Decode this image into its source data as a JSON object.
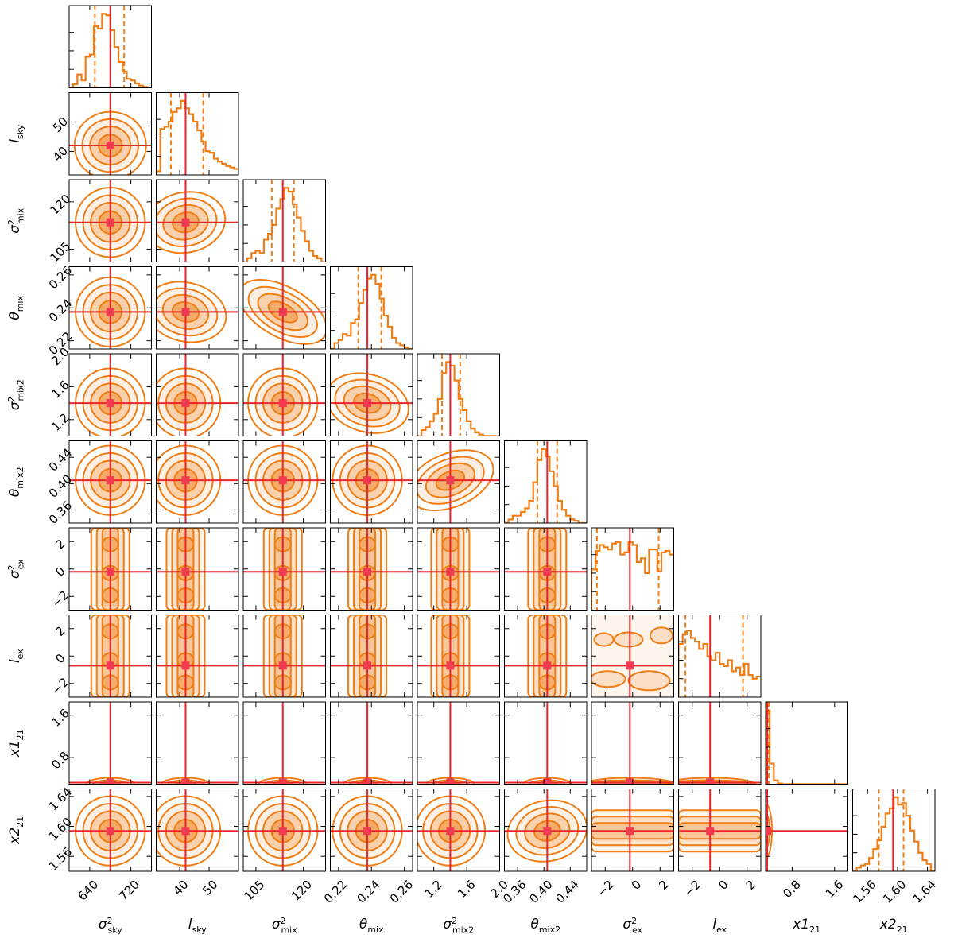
{
  "colors": {
    "contour": "#f07d15",
    "fill": "#f07d15",
    "truth": "#e8262a",
    "truth_marker": "#f03a50",
    "axes": "#000000"
  },
  "chart_data": {
    "type": "corner",
    "parameters": [
      {
        "key": "s2sky",
        "base": "σ",
        "sup": "2",
        "sub": "sky",
        "range": [
          600,
          760
        ],
        "ticks": [
          640,
          720
        ],
        "tick_labels": [
          "640",
          "720"
        ],
        "truth": 680,
        "quantiles": [
          650,
          707
        ]
      },
      {
        "key": "lsky",
        "base": "l",
        "sup": "",
        "sub": "sky",
        "range": [
          32,
          60
        ],
        "ticks": [
          40,
          50
        ],
        "tick_labels": [
          "40",
          "50"
        ],
        "truth": 42,
        "quantiles": [
          37,
          48
        ]
      },
      {
        "key": "s2mix",
        "base": "σ",
        "sup": "2",
        "sub": "mix",
        "range": [
          101,
          127
        ],
        "ticks": [
          105,
          120
        ],
        "tick_labels": [
          "105",
          "120"
        ],
        "truth": 113.5,
        "quantiles": [
          110,
          117
        ]
      },
      {
        "key": "tmix",
        "base": "θ",
        "sup": "",
        "sub": "mix",
        "range": [
          0.215,
          0.265
        ],
        "ticks": [
          0.22,
          0.24,
          0.26
        ],
        "tick_labels": [
          "0.22",
          "0.24",
          "0.26"
        ],
        "truth": 0.2375,
        "quantiles": [
          0.232,
          0.246
        ]
      },
      {
        "key": "s2mix2",
        "base": "σ",
        "sup": "2",
        "sub": "mix2",
        "range": [
          1.0,
          2.0
        ],
        "ticks": [
          1.2,
          1.6,
          2.0
        ],
        "tick_labels": [
          "1.2",
          "1.6",
          "2.0"
        ],
        "truth": 1.4,
        "quantiles": [
          1.3,
          1.52
        ]
      },
      {
        "key": "tmix2",
        "base": "θ",
        "sup": "",
        "sub": "mix2",
        "range": [
          0.34,
          0.465
        ],
        "ticks": [
          0.36,
          0.4,
          0.44
        ],
        "tick_labels": [
          "0.36",
          "0.40",
          "0.44"
        ],
        "truth": 0.405,
        "quantiles": [
          0.39,
          0.42
        ]
      },
      {
        "key": "s2ex",
        "base": "σ",
        "sup": "2",
        "sub": "ex",
        "range": [
          -3,
          3
        ],
        "ticks": [
          -2,
          0,
          2
        ],
        "tick_labels": [
          "−2",
          "0",
          "2"
        ],
        "truth": -0.2,
        "quantiles": [
          -2.6,
          1.9
        ]
      },
      {
        "key": "lex",
        "base": "l",
        "sup": "",
        "sub": "ex",
        "range": [
          -3,
          3
        ],
        "ticks": [
          -2,
          0,
          2
        ],
        "tick_labels": [
          "−2",
          "0",
          "2"
        ],
        "truth": -0.7,
        "quantiles": [
          -2.5,
          1.7
        ]
      },
      {
        "key": "x121",
        "base": "x1",
        "sup": "",
        "sub": "21",
        "range": [
          0.3,
          1.85
        ],
        "ticks": [
          0.8,
          1.6
        ],
        "tick_labels": [
          "0.8",
          "1.6"
        ],
        "truth": 0.33,
        "quantiles": [
          0.31,
          0.36
        ]
      },
      {
        "key": "x221",
        "base": "x2",
        "sup": "",
        "sub": "21",
        "range": [
          1.54,
          1.65
        ],
        "ticks": [
          1.56,
          1.6,
          1.64
        ],
        "tick_labels": [
          "1.56",
          "1.60",
          "1.64"
        ],
        "truth": 1.594,
        "quantiles": [
          1.575,
          1.608
        ]
      }
    ],
    "histograms": [
      [
        0.0,
        0.05,
        0.18,
        0.1,
        0.42,
        0.45,
        0.83,
        0.8,
        1.0,
        0.98,
        0.78,
        0.55,
        0.35,
        0.22,
        0.12,
        0.1,
        0.06,
        0.03,
        0.01,
        0.0
      ],
      [
        0.05,
        0.62,
        0.65,
        0.72,
        0.85,
        0.9,
        1.0,
        0.9,
        0.82,
        0.72,
        0.6,
        0.45,
        0.32,
        0.3,
        0.22,
        0.18,
        0.15,
        0.12,
        0.1,
        0.08
      ],
      [
        0.0,
        0.05,
        0.12,
        0.15,
        0.12,
        0.3,
        0.38,
        0.5,
        0.72,
        0.85,
        1.0,
        0.95,
        0.78,
        0.6,
        0.42,
        0.28,
        0.15,
        0.08,
        0.05,
        0.0
      ],
      [
        0.0,
        0.08,
        0.12,
        0.2,
        0.18,
        0.35,
        0.4,
        0.62,
        0.8,
        0.95,
        1.0,
        0.88,
        0.68,
        0.45,
        0.3,
        0.15,
        0.08,
        0.05,
        0.02,
        0.0
      ],
      [
        0.0,
        0.08,
        0.12,
        0.2,
        0.3,
        0.5,
        0.85,
        1.0,
        0.95,
        0.75,
        0.5,
        0.35,
        0.2,
        0.1,
        0.05,
        0.02,
        0.0,
        0.0,
        0.0,
        0.0
      ],
      [
        0.0,
        0.05,
        0.1,
        0.1,
        0.15,
        0.2,
        0.3,
        0.55,
        0.85,
        1.0,
        0.9,
        0.7,
        0.5,
        0.3,
        0.18,
        0.1,
        0.05,
        0.03,
        0.0,
        0.0
      ],
      [
        0.55,
        0.8,
        0.88,
        0.85,
        0.82,
        0.9,
        0.92,
        0.75,
        0.78,
        0.92,
        0.88,
        0.65,
        0.7,
        0.5,
        0.82,
        0.82,
        0.52,
        0.78,
        0.8,
        0.75
      ],
      [
        0.72,
        0.85,
        0.9,
        0.8,
        0.75,
        0.65,
        0.72,
        0.55,
        0.5,
        0.6,
        0.45,
        0.42,
        0.5,
        0.35,
        0.4,
        0.3,
        0.45,
        0.3,
        0.25,
        0.28
      ],
      [
        1.0,
        0.28,
        0.05,
        0.01,
        0.0,
        0.0,
        0.0,
        0.0,
        0.0,
        0.0,
        0.0,
        0.0,
        0.0,
        0.0,
        0.0,
        0.0,
        0.0,
        0.0,
        0.0,
        0.0
      ],
      [
        0.0,
        0.05,
        0.08,
        0.1,
        0.18,
        0.3,
        0.42,
        0.6,
        0.78,
        0.85,
        1.0,
        0.9,
        0.92,
        0.75,
        0.55,
        0.4,
        0.25,
        0.15,
        0.1,
        0.0
      ]
    ],
    "correlations": {
      "1-0": 0.05,
      "2-1": 0.25,
      "3-1": -0.3,
      "3-2": -0.65,
      "4-3": -0.35,
      "5-4": 0.5,
      "9-5": 0.25
    },
    "diffuse_pairs": [
      "6-0",
      "6-1",
      "6-2",
      "6-3",
      "6-4",
      "6-5",
      "7-0",
      "7-1",
      "7-2",
      "7-3",
      "7-4",
      "7-5",
      "7-6",
      "9-6",
      "9-7"
    ],
    "degenerate_pairs": [
      "8-0",
      "8-1",
      "8-2",
      "8-3",
      "8-4",
      "8-5",
      "8-6",
      "8-7",
      "9-8"
    ]
  }
}
